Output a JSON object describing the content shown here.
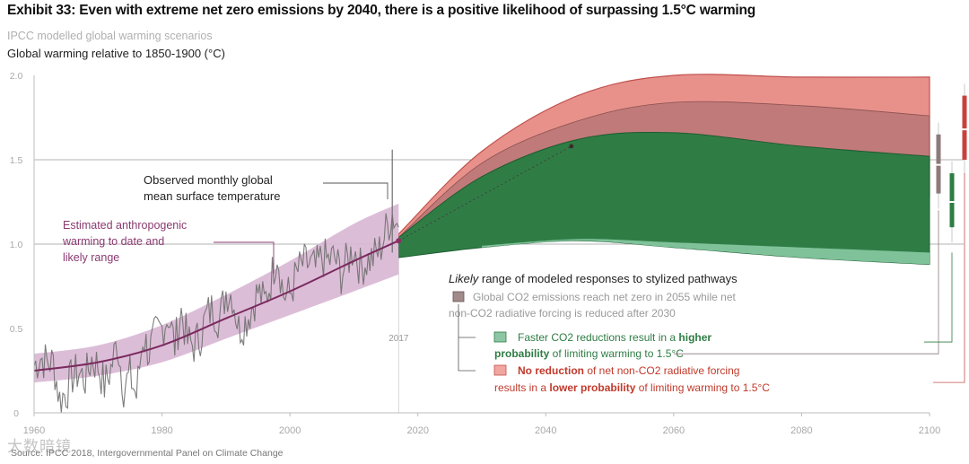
{
  "header": {
    "title": "Exhibit 33: Even with extreme net zero emissions by 2040, there is a positive likelihood of surpassing 1.5°C warming",
    "subtitle": "IPCC modelled global warming scenarios",
    "source": "Source: IPCC 2018, Intergovernmental Panel on Climate Change",
    "watermark": "大数暗镜"
  },
  "chart_data": {
    "type": "line",
    "ylabel": "Global warming relative to 1850-1900 (°C)",
    "xlim": [
      1960,
      2100
    ],
    "ylim": [
      0,
      2.0
    ],
    "xticks": [
      "1960",
      "1980",
      "2000",
      "2020",
      "2040",
      "2060",
      "2080",
      "2100"
    ],
    "yticks": [
      "0",
      "0.5",
      "1.0",
      "1.5",
      "2.0"
    ],
    "grid": "y-reference lines at 1.0 and 1.5",
    "marker_year": {
      "x": 2017,
      "label": "2017"
    },
    "series": [
      {
        "name": "Observed monthly global mean surface temperature",
        "color": "#6e6e6e",
        "x": [
          1960,
          1961,
          1962,
          1963,
          1964,
          1965,
          1966,
          1967,
          1968,
          1969,
          1970,
          1971,
          1972,
          1973,
          1974,
          1975,
          1976,
          1977,
          1978,
          1979,
          1980,
          1981,
          1982,
          1983,
          1984,
          1985,
          1986,
          1987,
          1988,
          1989,
          1990,
          1991,
          1992,
          1993,
          1994,
          1995,
          1996,
          1997,
          1998,
          1999,
          2000,
          2001,
          2002,
          2003,
          2004,
          2005,
          2006,
          2007,
          2008,
          2009,
          2010,
          2011,
          2012,
          2013,
          2014,
          2015,
          2016,
          2017
        ],
        "values": [
          0.28,
          0.33,
          0.3,
          0.3,
          0.08,
          0.12,
          0.22,
          0.24,
          0.2,
          0.32,
          0.28,
          0.16,
          0.26,
          0.42,
          0.15,
          0.22,
          0.1,
          0.45,
          0.36,
          0.46,
          0.5,
          0.58,
          0.4,
          0.6,
          0.42,
          0.4,
          0.46,
          0.58,
          0.62,
          0.55,
          0.72,
          0.7,
          0.5,
          0.54,
          0.62,
          0.72,
          0.65,
          0.78,
          0.96,
          0.7,
          0.7,
          0.82,
          0.88,
          0.88,
          0.85,
          0.92,
          0.9,
          0.92,
          0.82,
          0.9,
          0.98,
          0.86,
          0.9,
          0.92,
          0.96,
          1.08,
          1.18,
          1.1
        ]
      },
      {
        "name": "Estimated anthropogenic warming to date and likely range",
        "color": "#7a2a5e",
        "x": [
          1960,
          1970,
          1980,
          1990,
          2000,
          2010,
          2017
        ],
        "values": [
          0.25,
          0.3,
          0.4,
          0.56,
          0.72,
          0.9,
          1.02
        ],
        "upper": [
          0.35,
          0.4,
          0.52,
          0.7,
          0.9,
          1.12,
          1.24
        ],
        "lower": [
          0.18,
          0.22,
          0.3,
          0.44,
          0.58,
          0.72,
          0.82
        ]
      },
      {
        "name": "No reduction of net non-CO2 radiative forcing results in a lower probability of limiting warming to 1.5°C",
        "color": "#e8908a",
        "x": [
          2017,
          2030,
          2045,
          2060,
          2080,
          2100
        ],
        "upper": [
          1.06,
          1.55,
          1.88,
          2.0,
          1.99,
          1.99
        ],
        "lower": [
          1.0,
          1.22,
          1.3,
          1.32,
          1.3,
          1.28
        ]
      },
      {
        "name": "Global CO2 emissions reach net zero in 2055 while net non-CO2 radiative forcing is reduced after 2030",
        "color": "#b56a6a",
        "x": [
          2017,
          2030,
          2045,
          2060,
          2080,
          2100
        ],
        "upper": [
          1.04,
          1.48,
          1.73,
          1.84,
          1.82,
          1.76
        ],
        "lower": [
          0.96,
          1.1,
          1.12,
          1.1,
          1.06,
          1.02
        ]
      },
      {
        "name": "Faster CO2 reductions result in a higher probability of limiting warming to 1.5°C",
        "color": "#2e7d44",
        "x": [
          2017,
          2030,
          2045,
          2060,
          2080,
          2100
        ],
        "upper": [
          1.04,
          1.4,
          1.62,
          1.66,
          1.58,
          1.52
        ],
        "lower": [
          0.92,
          0.98,
          1.02,
          0.98,
          0.92,
          0.88
        ]
      }
    ],
    "annotations": {
      "observed": "Observed monthly global mean surface temperature",
      "anthropogenic": "Estimated anthropogenic warming to date and likely range",
      "legend_heading_em": "Likely",
      "legend_heading_rest": " range of modeled responses to stylized pathways",
      "grey_line1": "Global CO2 emissions reach net zero in 2055 while net",
      "grey_line2": "non-CO2 radiative forcing is reduced after 2030",
      "green_line1_a": "Faster CO2 reductions result in a ",
      "green_line1_b": "higher",
      "green_line2_a": "probability",
      "green_line2_b": " of limiting warming to 1.5°C",
      "red_line1_a": "No reduction",
      "red_line1_b": " of net non-CO2 radiative forcing",
      "red_line2_a": "results in a ",
      "red_line2_b": "lower probability",
      "red_line2_c": " of limiting warming to 1.5°C"
    },
    "range_bars": [
      {
        "series": "grey",
        "color": "#8e7a7a",
        "lower": 1.3,
        "upper": 1.65,
        "median": 1.47
      },
      {
        "series": "green",
        "color": "#2e7d44",
        "lower": 1.1,
        "upper": 1.42,
        "median": 1.25
      },
      {
        "series": "red",
        "color": "#c9403d",
        "lower": 1.5,
        "upper": 1.88,
        "median": 1.68
      }
    ]
  }
}
